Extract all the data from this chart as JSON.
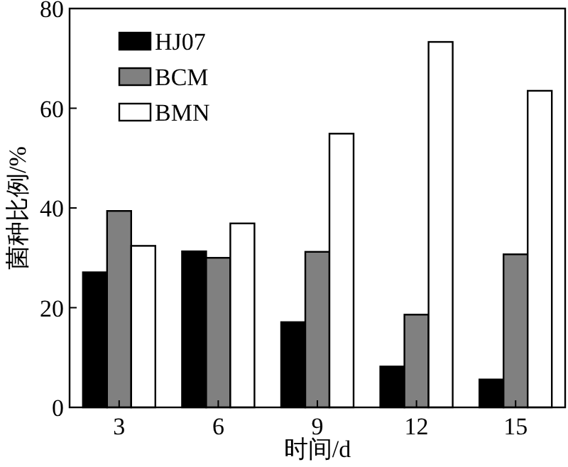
{
  "chart_data": {
    "type": "bar",
    "xlabel": "时间/d",
    "ylabel": "菌种比例/%",
    "categories": [
      "3",
      "6",
      "9",
      "12",
      "15"
    ],
    "series": [
      {
        "name": "HJ07",
        "color": "#000000",
        "values": [
          27.1,
          31.3,
          17.1,
          8.2,
          5.6
        ]
      },
      {
        "name": "BCM",
        "color": "#808080",
        "values": [
          39.4,
          30.0,
          31.2,
          18.6,
          30.7
        ]
      },
      {
        "name": "BMN",
        "color": "#ffffff",
        "values": [
          32.4,
          36.9,
          54.9,
          73.3,
          63.5
        ]
      }
    ],
    "ylim": [
      0,
      80
    ],
    "yticks": [
      0,
      20,
      40,
      60,
      80
    ],
    "legend": "top left"
  }
}
